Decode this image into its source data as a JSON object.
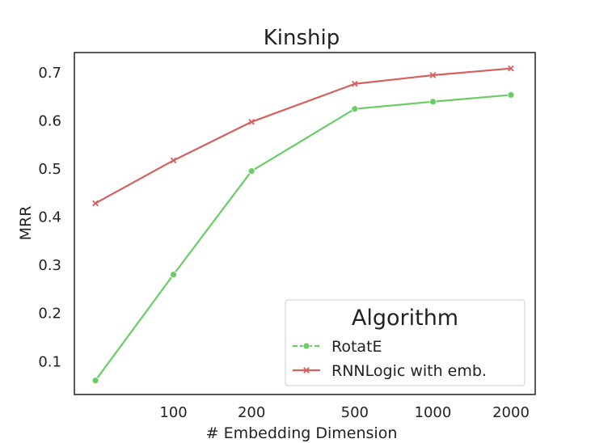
{
  "chart_data": {
    "type": "line",
    "title": "Kinship",
    "xlabel": "# Embedding Dimension",
    "ylabel": "MRR",
    "x": [
      50,
      100,
      200,
      500,
      1000,
      2000
    ],
    "x_ticks": [
      "100",
      "200",
      "500",
      "1000",
      "2000"
    ],
    "y_ticks": [
      "0.1",
      "0.2",
      "0.3",
      "0.4",
      "0.5",
      "0.6",
      "0.7"
    ],
    "xscale": "log",
    "ylim": [
      0.03,
      0.74
    ],
    "grid": false,
    "legend": {
      "title": "Algorithm",
      "position": "lower-right"
    },
    "series": [
      {
        "name": "RotatE",
        "color": "#6acc64",
        "marker": "circle",
        "values": [
          0.059,
          0.279,
          0.494,
          0.623,
          0.638,
          0.652
        ]
      },
      {
        "name": "RNNLogic with emb.",
        "color": "#d65f5f",
        "marker": "x",
        "values": [
          0.427,
          0.516,
          0.596,
          0.675,
          0.693,
          0.707
        ]
      }
    ]
  }
}
